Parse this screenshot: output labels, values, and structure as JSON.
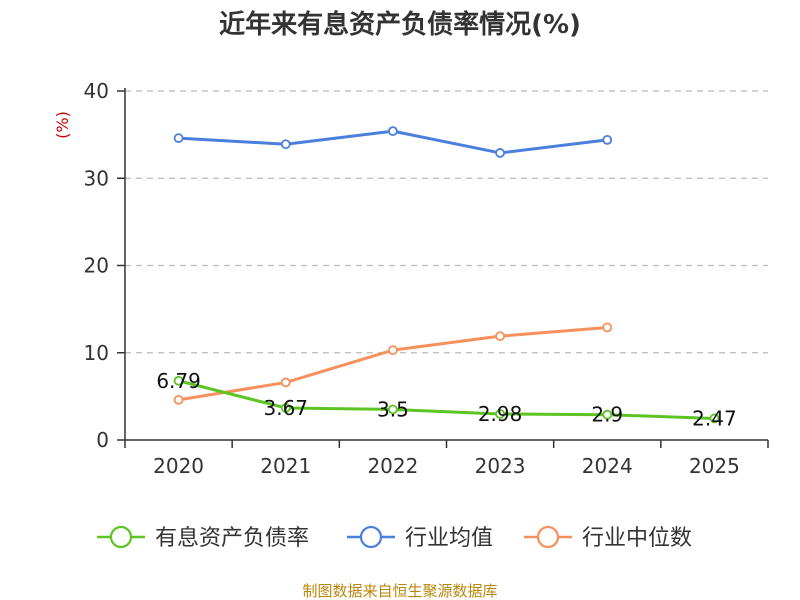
{
  "chart_data": {
    "type": "line",
    "title": "近年来有息资产负债率情况(%)",
    "ylabel": "(%)",
    "xlabel": "",
    "ylim": [
      0,
      40
    ],
    "yticks": [
      0,
      10,
      20,
      30,
      40
    ],
    "grid": true,
    "legend_position": "bottom",
    "categories": [
      "2020",
      "2021",
      "2022",
      "2023",
      "2024",
      "2025"
    ],
    "series": [
      {
        "name": "有息资产负债率",
        "color": "#5cc423",
        "values": [
          6.79,
          3.67,
          3.5,
          2.98,
          2.9,
          2.47
        ],
        "labels": [
          "6.79",
          "3.67",
          "3.5",
          "2.98",
          "2.9",
          "2.47"
        ]
      },
      {
        "name": "行业均值",
        "color": "#4a7fdc",
        "values": [
          34.6,
          33.9,
          35.4,
          32.9,
          34.4,
          null
        ]
      },
      {
        "name": "行业中位数",
        "color": "#f7905c",
        "values": [
          4.6,
          6.6,
          10.3,
          11.9,
          12.9,
          null
        ]
      }
    ]
  },
  "colors": {
    "unit": "#cc0000",
    "source": "#b8860b",
    "axis": "#333333",
    "grid": "#bbbbbb"
  },
  "source_text": "制图数据来自恒生聚源数据库"
}
